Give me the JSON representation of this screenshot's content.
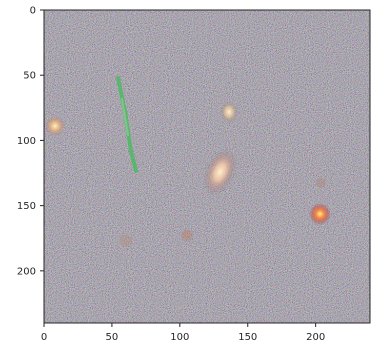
{
  "figure": {
    "image_description_name": "astronomical-image",
    "x_ticks": [
      {
        "value": 0,
        "label": "0"
      },
      {
        "value": 50,
        "label": "50"
      },
      {
        "value": 100,
        "label": "100"
      },
      {
        "value": 150,
        "label": "150"
      },
      {
        "value": 200,
        "label": "200"
      }
    ],
    "y_ticks": [
      {
        "value": 0,
        "label": "0"
      },
      {
        "value": 50,
        "label": "50"
      },
      {
        "value": 100,
        "label": "100"
      },
      {
        "value": 150,
        "label": "150"
      },
      {
        "value": 200,
        "label": "200"
      }
    ],
    "x_range": [
      0,
      240
    ],
    "y_range": [
      0,
      240
    ],
    "colors": {
      "axis": "#262626",
      "background": "#ffffff"
    }
  }
}
